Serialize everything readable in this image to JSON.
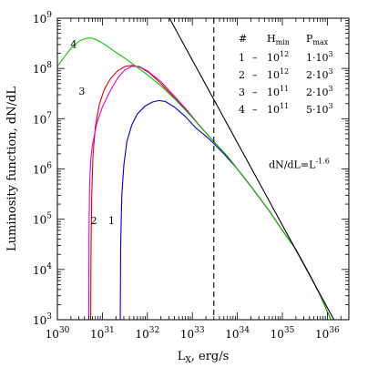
{
  "chart_data": {
    "type": "line",
    "title": "",
    "xlabel": "L",
    "xlabel_sub": "X",
    "xlabel_suffix": ", erg/s",
    "ylabel": "Luminosity function, dN/dL",
    "x_scale": "log",
    "y_scale": "log",
    "xlim": [
      1e+30,
      3e+36
    ],
    "ylim": [
      1000.0,
      1000000000.0
    ],
    "x_ticks": [
      {
        "value": 1e+30,
        "base": "10",
        "exp": "30"
      },
      {
        "value": 1e+31,
        "base": "10",
        "exp": "31"
      },
      {
        "value": 1e+32,
        "base": "10",
        "exp": "32"
      },
      {
        "value": 1e+33,
        "base": "10",
        "exp": "33"
      },
      {
        "value": 1e+34,
        "base": "10",
        "exp": "34"
      },
      {
        "value": 1e+35,
        "base": "10",
        "exp": "35"
      },
      {
        "value": 1e+36,
        "base": "10",
        "exp": "36"
      }
    ],
    "y_ticks": [
      {
        "value": 1000.0,
        "base": "10",
        "exp": "3"
      },
      {
        "value": 10000.0,
        "base": "10",
        "exp": "4"
      },
      {
        "value": 100000.0,
        "base": "10",
        "exp": "5"
      },
      {
        "value": 1000000.0,
        "base": "10",
        "exp": "6"
      },
      {
        "value": 10000000.0,
        "base": "10",
        "exp": "7"
      },
      {
        "value": 100000000.0,
        "base": "10",
        "exp": "8"
      },
      {
        "value": 1000000000.0,
        "base": "10",
        "exp": "9"
      }
    ],
    "series": [
      {
        "label": "1",
        "color": "#0000cc",
        "label_at": [
          1.6e+31,
          80000.0
        ],
        "points": [
          [
            2.5e+31,
            1000.0
          ],
          [
            2.55e+31,
            30000.0
          ],
          [
            2.7e+31,
            300000.0
          ],
          [
            3e+31,
            1200000.0
          ],
          [
            3.5e+31,
            3500000.0
          ],
          [
            4.5e+31,
            7500000.0
          ],
          [
            6e+31,
            12500000.0
          ],
          [
            9e+31,
            18000000.0
          ],
          [
            1.3e+32,
            21500000.0
          ],
          [
            1.8e+32,
            23000000.0
          ],
          [
            2.5e+32,
            22000000.0
          ],
          [
            4e+32,
            17000000.0
          ],
          [
            7e+32,
            11000000.0
          ],
          [
            1.2e+33,
            6500000.0
          ],
          [
            2e+33,
            4500000.0
          ],
          [
            3e+33,
            3200000.0
          ],
          [
            5e+33,
            2000000.0
          ],
          [
            1e+34,
            1000000.0
          ],
          [
            2e+34,
            450000.0
          ],
          [
            5e+34,
            150000.0
          ],
          [
            1e+35,
            60000.0
          ],
          [
            2e+35,
            25000.0
          ],
          [
            4e+35,
            8000.0
          ],
          [
            7e+35,
            3000.0
          ],
          [
            1.2e+36,
            1000.0
          ]
        ]
      },
      {
        "label": "2",
        "color": "#dd0000",
        "label_at": [
          6.5e+30,
          80000.0
        ],
        "points": [
          [
            5.5e+30,
            1000.0
          ],
          [
            5.6e+30,
            30000.0
          ],
          [
            5.8e+30,
            300000.0
          ],
          [
            6.2e+30,
            2000000.0
          ],
          [
            7e+30,
            7000000.0
          ],
          [
            8.5e+30,
            19000000.0
          ],
          [
            1.1e+31,
            38000000.0
          ],
          [
            1.5e+31,
            62000000.0
          ],
          [
            2.2e+31,
            90000000.0
          ],
          [
            3.2e+31,
            110000000.0
          ],
          [
            4.5e+31,
            115000000.0
          ],
          [
            7e+31,
            105000000.0
          ],
          [
            1.1e+32,
            82000000.0
          ],
          [
            2e+32,
            50000000.0
          ],
          [
            4e+32,
            26000000.0
          ],
          [
            8e+32,
            13500000.0
          ],
          [
            1.5e+33,
            7000000.0
          ],
          [
            3e+33,
            3500000.0
          ],
          [
            6e+33,
            1800000.0
          ],
          [
            1e+34,
            1000000.0
          ],
          [
            2e+34,
            450000.0
          ],
          [
            5e+34,
            150000.0
          ],
          [
            1e+35,
            60000.0
          ],
          [
            2e+35,
            25000.0
          ],
          [
            4e+35,
            8000.0
          ],
          [
            7e+35,
            3000.0
          ],
          [
            1.2e+36,
            1000.0
          ]
        ]
      },
      {
        "label": "3",
        "color": "#dd00dd",
        "label_at": [
          3.5e+30,
          30000000.0
        ],
        "points": [
          [
            5e+30,
            1000.0
          ],
          [
            5.05e+30,
            50000.0
          ],
          [
            5.2e+30,
            500000.0
          ],
          [
            5.5e+30,
            1500000.0
          ],
          [
            6e+30,
            3000000.0
          ],
          [
            7.5e+30,
            8000000.0
          ],
          [
            1e+31,
            17000000.0
          ],
          [
            1.5e+31,
            36000000.0
          ],
          [
            2.2e+31,
            65000000.0
          ],
          [
            3.2e+31,
            95000000.0
          ],
          [
            4.5e+31,
            110000000.0
          ],
          [
            6.5e+31,
            110000000.0
          ],
          [
            1e+32,
            90000000.0
          ],
          [
            2e+32,
            55000000.0
          ],
          [
            4e+32,
            28000000.0
          ],
          [
            8e+32,
            14000000.0
          ],
          [
            1.5e+33,
            7000000.0
          ],
          [
            3e+33,
            3500000.0
          ],
          [
            6e+33,
            1800000.0
          ],
          [
            1e+34,
            1000000.0
          ],
          [
            2e+34,
            450000.0
          ],
          [
            5e+34,
            150000.0
          ],
          [
            1e+35,
            60000.0
          ],
          [
            2e+35,
            25000.0
          ],
          [
            4e+35,
            8000.0
          ],
          [
            7e+35,
            3000.0
          ],
          [
            1.2e+36,
            1000.0
          ]
        ]
      },
      {
        "label": "4",
        "color": "#00cc00",
        "label_at": [
          2.3e+30,
          260000000.0
        ],
        "points": [
          [
            1e+30,
            110000000.0
          ],
          [
            1.5e+30,
            180000000.0
          ],
          [
            2.2e+30,
            280000000.0
          ],
          [
            3.2e+30,
            360000000.0
          ],
          [
            4.5e+30,
            400000000.0
          ],
          [
            6e+30,
            400000000.0
          ],
          [
            8e+30,
            360000000.0
          ],
          [
            1.2e+31,
            290000000.0
          ],
          [
            2e+31,
            210000000.0
          ],
          [
            3.5e+31,
            150000000.0
          ],
          [
            6e+31,
            105000000.0
          ],
          [
            1e+32,
            75000000.0
          ],
          [
            2e+32,
            45000000.0
          ],
          [
            4e+32,
            25000000.0
          ],
          [
            8e+32,
            13000000.0
          ],
          [
            1.5e+33,
            7000000.0
          ],
          [
            3e+33,
            3500000.0
          ],
          [
            6e+33,
            1800000.0
          ],
          [
            1e+34,
            1000000.0
          ],
          [
            2e+34,
            450000.0
          ],
          [
            5e+34,
            150000.0
          ],
          [
            1e+35,
            60000.0
          ],
          [
            2e+35,
            25000.0
          ],
          [
            4e+35,
            8000.0
          ],
          [
            7e+35,
            3000.0
          ],
          [
            1.2e+36,
            1000.0
          ]
        ]
      }
    ],
    "power_law": {
      "label": "dN/dL=L",
      "label_exp": "-1.6",
      "label_at": [
        5e+34,
        1050000.0
      ],
      "color": "#000000",
      "points": [
        [
          3.1e+32,
          1000000000.0
        ],
        [
          1.4e+36,
          1000.0
        ]
      ]
    },
    "vline": {
      "x": 3e+33,
      "style": "dashed",
      "color": "#000000"
    },
    "legend_table": {
      "headers": [
        {
          "text": "#"
        },
        {
          "text": "H",
          "sub": "min"
        },
        {
          "text": "P",
          "sub": "max"
        }
      ],
      "rows": [
        {
          "num": "1",
          "dash": "–",
          "h_base": "10",
          "h_exp": "12",
          "p_base": "1·10",
          "p_exp": "3"
        },
        {
          "num": "2",
          "dash": "–",
          "h_base": "10",
          "h_exp": "12",
          "p_base": "2·10",
          "p_exp": "3"
        },
        {
          "num": "3",
          "dash": "–",
          "h_base": "10",
          "h_exp": "11",
          "p_base": "2·10",
          "p_exp": "3"
        },
        {
          "num": "4",
          "dash": "–",
          "h_base": "10",
          "h_exp": "11",
          "p_base": "5·10",
          "p_exp": "3"
        }
      ]
    },
    "grid": false
  }
}
